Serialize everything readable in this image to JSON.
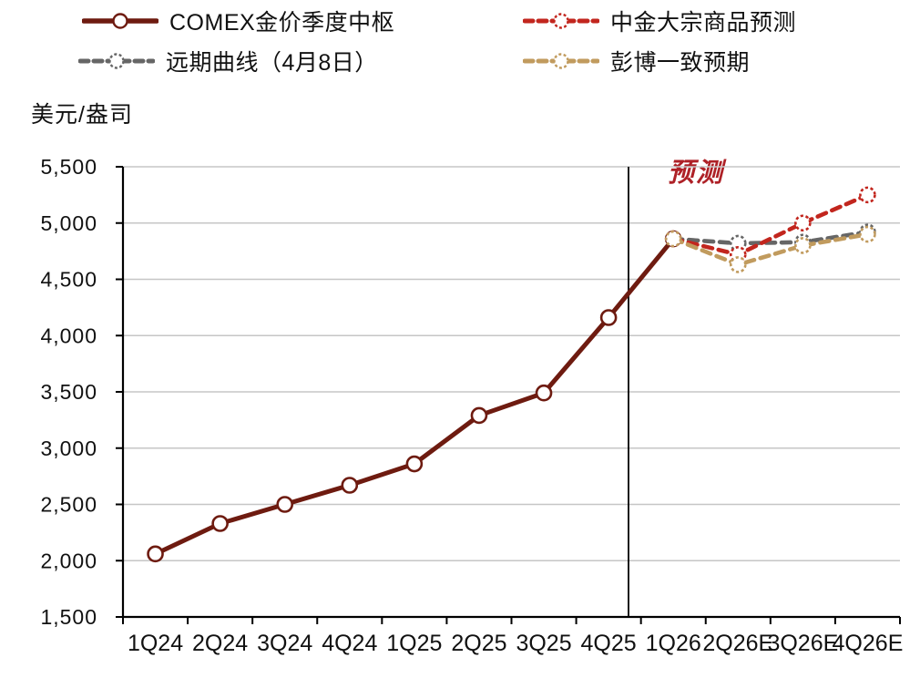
{
  "unit_label": "美元/盎司",
  "forecast_label": "预测",
  "colors": {
    "actual": "#6e1b10",
    "cicc_forecast": "#c2261e",
    "forward_curve": "#666666",
    "bloomberg": "#c19b5e",
    "grid": "#c6c6c6",
    "axis": "#000000",
    "forecast_text": "#ae2127",
    "text": "#111111"
  },
  "legend": [
    {
      "label": "COMEX金价季度中枢",
      "color": "#6e1b10",
      "style": "solid"
    },
    {
      "label": "中金大宗商品预测",
      "color": "#c2261e",
      "style": "dashed"
    },
    {
      "label": "远期曲线（4月8日）",
      "color": "#666666",
      "style": "dashed"
    },
    {
      "label": "彭博一致预期",
      "color": "#c19b5e",
      "style": "dashed"
    }
  ],
  "chart_data": {
    "type": "line",
    "title": "",
    "xlabel": "",
    "ylabel": "美元/盎司",
    "categories": [
      "1Q24",
      "2Q24",
      "3Q24",
      "4Q24",
      "1Q25",
      "2Q25",
      "3Q25",
      "4Q25",
      "1Q26",
      "2Q26E",
      "3Q26E",
      "4Q26E"
    ],
    "series": [
      {
        "name": "COMEX金价季度中枢",
        "color": "#6e1b10",
        "style": "solid",
        "start_index": 0,
        "values": [
          2060,
          2330,
          2500,
          2670,
          2860,
          3290,
          3490,
          4160,
          4860
        ]
      },
      {
        "name": "远期曲线（4月8日）",
        "color": "#666666",
        "style": "dashed",
        "start_index": 8,
        "values": [
          4860,
          4820,
          4830,
          4920
        ]
      },
      {
        "name": "中金大宗商品预测",
        "color": "#c2261e",
        "style": "dashed",
        "start_index": 8,
        "values": [
          4860,
          4720,
          5000,
          5250
        ]
      },
      {
        "name": "彭博一致预期",
        "color": "#c19b5e",
        "style": "dashed",
        "start_index": 8,
        "values": [
          4860,
          4630,
          4800,
          4900
        ]
      }
    ],
    "ylim": [
      1500,
      5500
    ],
    "yticks": [
      1500,
      2000,
      2500,
      3000,
      3500,
      4000,
      4500,
      5000,
      5500
    ],
    "ytick_labels": [
      "1,500",
      "2,000",
      "2,500",
      "3,000",
      "3,500",
      "4,000",
      "4,500",
      "5,000",
      "5,500"
    ],
    "grid": "horizontal",
    "legend_position": "top",
    "forecast_divider_after_category": "4Q25",
    "forecast_annotation": "预测"
  }
}
